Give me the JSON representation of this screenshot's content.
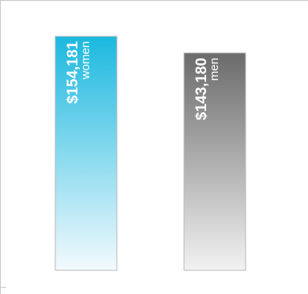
{
  "chart_data": {
    "type": "bar",
    "categories": [
      "women",
      "men"
    ],
    "values": [
      154181,
      143180
    ],
    "value_labels": [
      "$154,181",
      "$143,180"
    ],
    "colors": {
      "women_top": "#1bb8df",
      "women_bottom": "#f3fafd",
      "men_top": "#6b6b6b",
      "men_bottom": "#f2f2f2",
      "bar_border": "#b9b9b9"
    }
  }
}
